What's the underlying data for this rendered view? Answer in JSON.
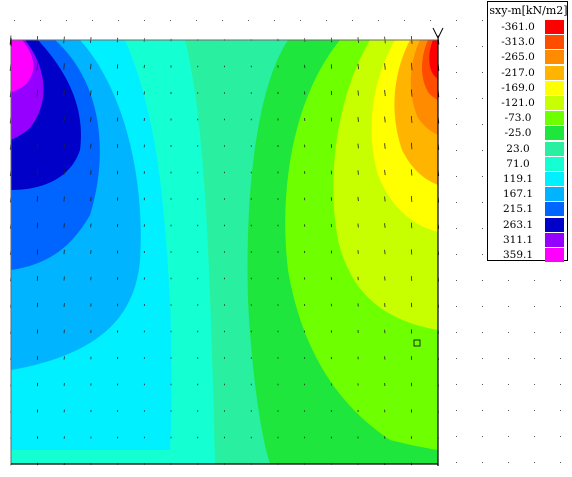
{
  "legend": {
    "title": "sxy-m[kN/m2]",
    "entries": [
      {
        "label": "-361.0",
        "color": "#ff0000"
      },
      {
        "label": "-313.0",
        "color": "#ff4d00"
      },
      {
        "label": "-265.0",
        "color": "#ff8c00"
      },
      {
        "label": "-217.0",
        "color": "#ffb400"
      },
      {
        "label": "-169.0",
        "color": "#ffff00"
      },
      {
        "label": "-121.0",
        "color": "#c8ff00"
      },
      {
        "label": "-73.0",
        "color": "#6eff00"
      },
      {
        "label": "-25.0",
        "color": "#1ee63c"
      },
      {
        "label": "23.0",
        "color": "#28f0a0"
      },
      {
        "label": "71.0",
        "color": "#14ffd2"
      },
      {
        "label": "119.1",
        "color": "#00f0ff"
      },
      {
        "label": "167.1",
        "color": "#00b4ff"
      },
      {
        "label": "215.1",
        "color": "#0064ff"
      },
      {
        "label": "263.1",
        "color": "#0000c8"
      },
      {
        "label": "311.1",
        "color": "#9600ff"
      },
      {
        "label": "359.1",
        "color": "#ff00ff"
      }
    ]
  },
  "contour_bands": [
    {
      "value": "359.1",
      "color": "#ff00ff"
    },
    {
      "value": "311.1",
      "color": "#9600ff"
    },
    {
      "value": "263.1",
      "color": "#0000c8"
    },
    {
      "value": "215.1",
      "color": "#0064ff"
    },
    {
      "value": "167.1",
      "color": "#00b4ff"
    },
    {
      "value": "119.1",
      "color": "#00f0ff"
    },
    {
      "value": "71.0",
      "color": "#14ffd2"
    },
    {
      "value": "23.0",
      "color": "#28f0a0"
    },
    {
      "value": "-25.0",
      "color": "#1ee63c"
    },
    {
      "value": "-73.0",
      "color": "#6eff00"
    },
    {
      "value": "-121.0",
      "color": "#c8ff00"
    },
    {
      "value": "-169.0",
      "color": "#ffff00"
    },
    {
      "value": "-217.0",
      "color": "#ffb400"
    },
    {
      "value": "-265.0",
      "color": "#ff8c00"
    },
    {
      "value": "-313.0",
      "color": "#ff4d00"
    },
    {
      "value": "-361.0",
      "color": "#ff0000"
    }
  ]
}
